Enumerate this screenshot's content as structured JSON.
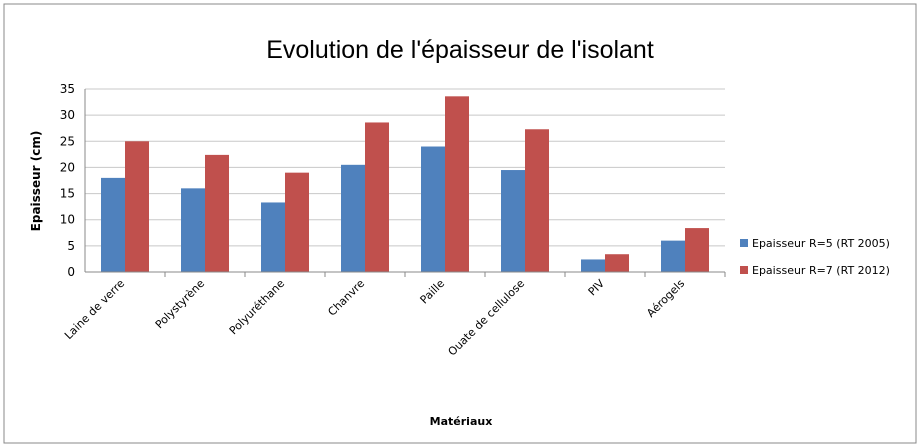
{
  "chart_data": {
    "type": "bar",
    "title": "Evolution de l'épaisseur de l'isolant",
    "x_label": "Matériaux",
    "y_label": "Epaisseur  (cm)",
    "categories": [
      "Laine de verre",
      "Polystyrène",
      "Polyuréthane",
      "Chanvre",
      "Paille",
      "Ouate de cellulose",
      "PIV",
      "Aérogels"
    ],
    "series": [
      {
        "name": "Epaisseur R=5 (RT 2005)",
        "color": "#4f81bd",
        "values": [
          18,
          16,
          13.3,
          20.5,
          24,
          19.5,
          2.4,
          6
        ]
      },
      {
        "name": "Epaisseur R=7 (RT 2012)",
        "color": "#c0504d",
        "values": [
          25,
          22.4,
          19,
          28.6,
          33.6,
          27.3,
          3.4,
          8.4
        ]
      }
    ],
    "ylim": [
      0,
      35
    ],
    "yticks": [
      0,
      5,
      10,
      15,
      20,
      25,
      30,
      35
    ],
    "grid": true,
    "legend": "right"
  }
}
